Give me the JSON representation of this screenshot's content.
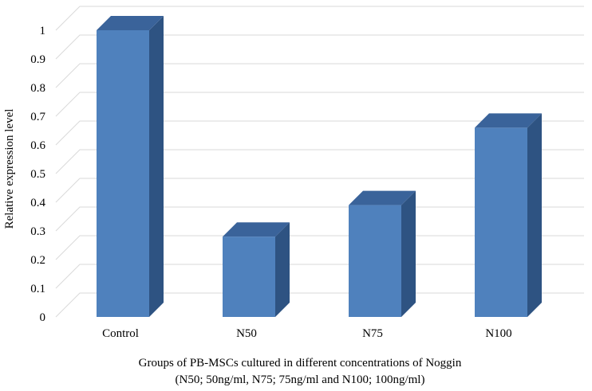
{
  "chart_data": {
    "type": "bar",
    "style": "3d-column",
    "categories": [
      "Control",
      "N50",
      "N75",
      "N100"
    ],
    "values": [
      1.0,
      0.28,
      0.39,
      0.66
    ],
    "ylabel": "Relative expression level",
    "xlabel": "Groups of PB-MSCs cultured in different concentrations of Noggin",
    "xlabel_line2": "(N50;  50ng/ml,  N75;  75ng/ml  and N100;  100ng/ml)",
    "ylim": [
      0,
      1
    ],
    "yticks": [
      0,
      0.1,
      0.2,
      0.3,
      0.4,
      0.5,
      0.6,
      0.7,
      0.8,
      0.9,
      1
    ],
    "ytick_labels": [
      "0",
      "0.1",
      "0.2",
      "0.3",
      "0.4",
      "0.5",
      "0.6",
      "0.7",
      "0.8",
      "0.9",
      "1"
    ],
    "grid": true,
    "legend": "none",
    "colors": {
      "front": "#4f81bd",
      "side": "#2e5382",
      "top": "#3a639a"
    }
  }
}
